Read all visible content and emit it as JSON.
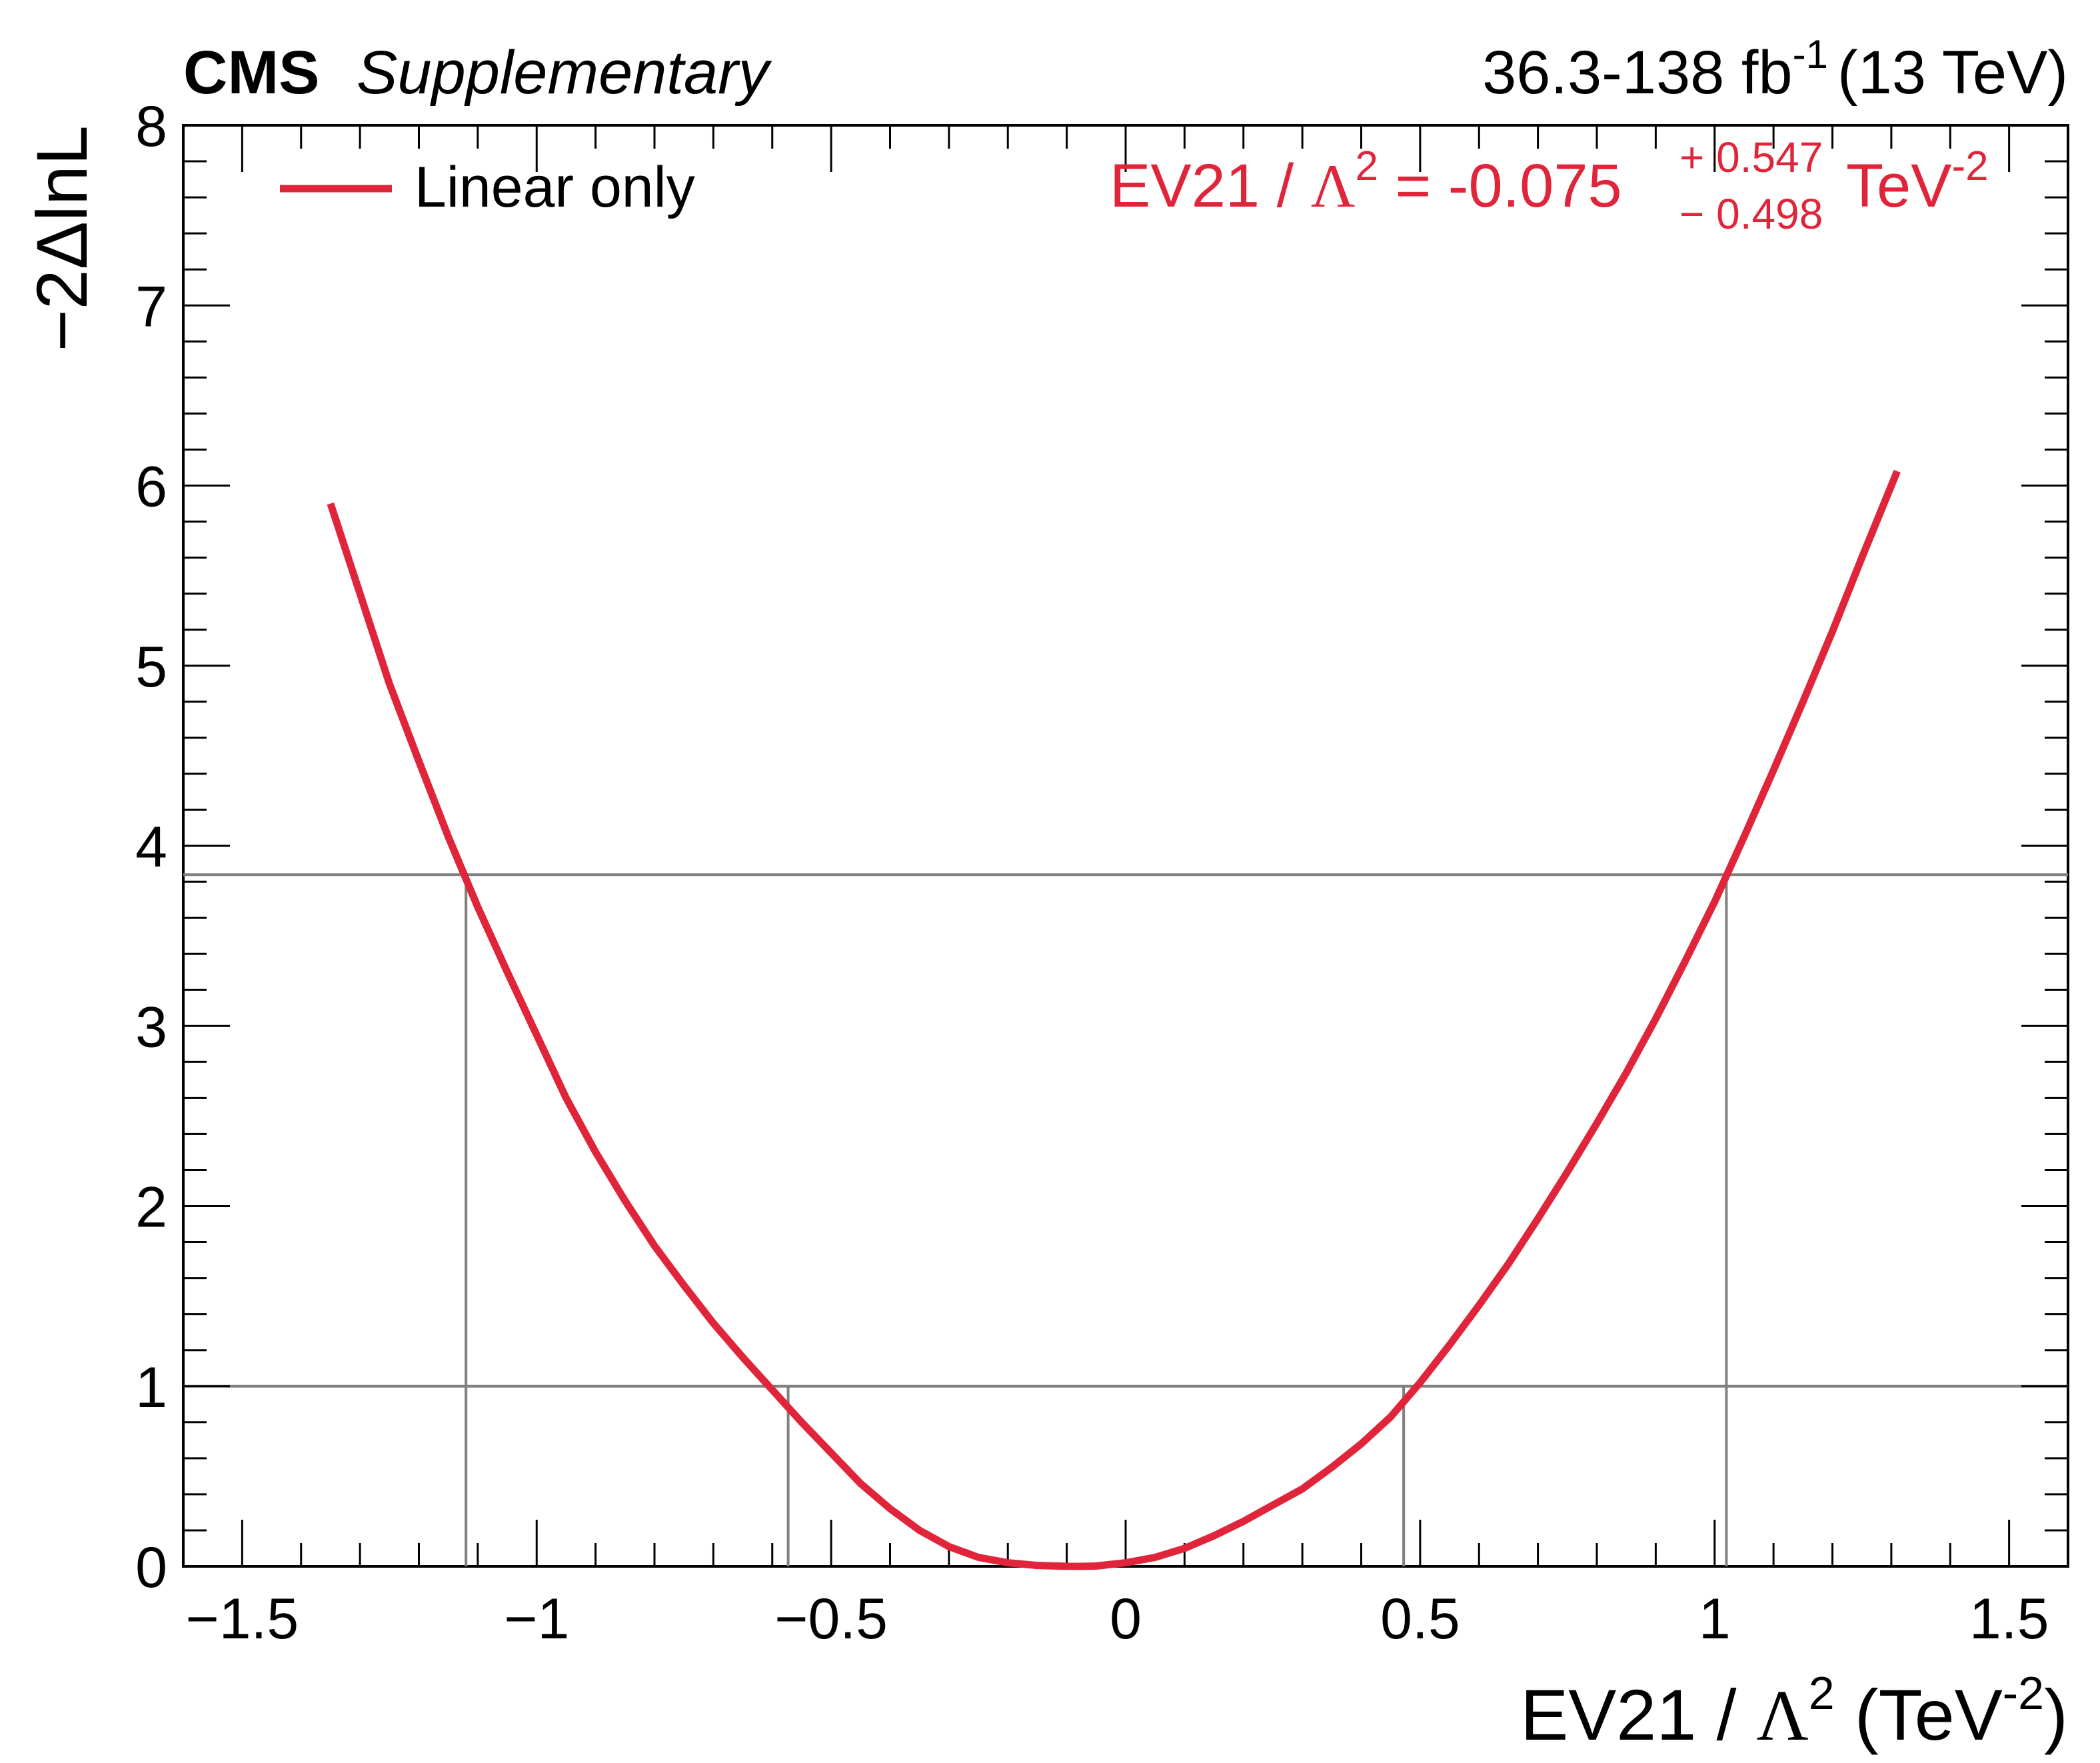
{
  "header": {
    "experiment": "CMS",
    "tag": "Supplementary",
    "lumi": "36.3-138 fb",
    "lumi_sup": "-1",
    "energy": "(13 TeV)"
  },
  "colors": {
    "curve": "#e0253a",
    "reference_lines": "#808080",
    "axes": "#000000"
  },
  "chart_data": {
    "type": "line",
    "title": "",
    "xlabel": {
      "pre": "EV21 / ",
      "symbol": "Λ",
      "sup": "2",
      "post_open": " (TeV",
      "post_sup": "-2",
      "post_close": ")"
    },
    "ylabel": "−2ΔlnL",
    "xlim": [
      -1.6,
      1.6
    ],
    "ylim": [
      0,
      8
    ],
    "x_ticks": [
      -1.5,
      -1,
      -0.5,
      0,
      0.5,
      1,
      1.5
    ],
    "x_tick_labels": [
      "−1.5",
      "−1",
      "−0.5",
      "0",
      "0.5",
      "1",
      "1.5"
    ],
    "y_ticks": [
      0,
      1,
      2,
      3,
      4,
      5,
      6,
      7,
      8
    ],
    "y_tick_labels": [
      "0",
      "1",
      "2",
      "3",
      "4",
      "5",
      "6",
      "7",
      "8"
    ],
    "legend": {
      "placement": "top-left",
      "entries": [
        {
          "label": "Linear only"
        }
      ]
    },
    "result": {
      "pre": "EV21 / ",
      "symbol": "Λ",
      "sup": "2",
      "value": " = -0.075",
      "err_up": "+ 0.547",
      "err_down": "− 0.498",
      "unit": "TeV",
      "unit_sup": "-2"
    },
    "series": [
      {
        "name": "Linear only",
        "x": [
          -1.35,
          -1.3,
          -1.25,
          -1.2,
          -1.15,
          -1.1,
          -1.05,
          -1.0,
          -0.95,
          -0.9,
          -0.85,
          -0.8,
          -0.75,
          -0.7,
          -0.65,
          -0.6,
          -0.55,
          -0.5,
          -0.45,
          -0.4,
          -0.35,
          -0.3,
          -0.25,
          -0.2,
          -0.15,
          -0.1,
          -0.075,
          -0.05,
          0.0,
          0.05,
          0.1,
          0.15,
          0.2,
          0.25,
          0.3,
          0.35,
          0.4,
          0.45,
          0.5,
          0.55,
          0.6,
          0.65,
          0.7,
          0.75,
          0.8,
          0.85,
          0.9,
          0.95,
          1.0,
          1.05,
          1.1,
          1.15,
          1.2,
          1.25,
          1.3,
          1.31
        ],
        "y": [
          5.9,
          5.4,
          4.9,
          4.47,
          4.05,
          3.66,
          3.3,
          2.95,
          2.6,
          2.3,
          2.03,
          1.78,
          1.56,
          1.35,
          1.16,
          0.98,
          0.8,
          0.63,
          0.46,
          0.32,
          0.2,
          0.11,
          0.05,
          0.02,
          0.005,
          0.0005,
          0.0,
          0.002,
          0.02,
          0.05,
          0.1,
          0.17,
          0.25,
          0.34,
          0.43,
          0.55,
          0.68,
          0.83,
          1.02,
          1.23,
          1.45,
          1.68,
          1.93,
          2.19,
          2.46,
          2.74,
          3.04,
          3.36,
          3.69,
          4.05,
          4.42,
          4.8,
          5.19,
          5.6,
          6.0,
          6.08
        ]
      }
    ],
    "reference_levels": [
      {
        "y": 1.0,
        "x_low": -0.573,
        "x_high": 0.472
      },
      {
        "y": 3.84,
        "x_low": -1.12,
        "x_high": 1.02
      }
    ]
  }
}
